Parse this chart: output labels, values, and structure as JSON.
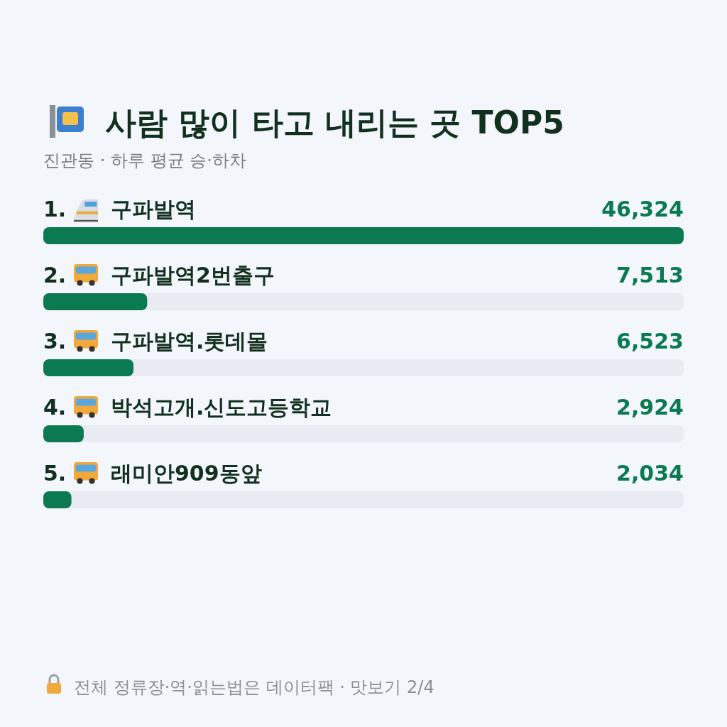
{
  "chart_data": {
    "type": "bar",
    "orientation": "horizontal",
    "title": "사람 많이 타고 내리는 곳 TOP5",
    "subtitle": "진관동 · 하루 평균 승·하차",
    "categories": [
      "1. 구파발역",
      "2. 구파발역2번출구",
      "3. 구파발역.롯데몰",
      "4. 박석고개.신도고등학교",
      "5. 래미안909동앞"
    ],
    "series": [
      {
        "color": "#0b7a50",
        "values": [
          46324,
          7513,
          6523,
          2924,
          2034
        ],
        "value_labels": [
          "46,324",
          "7,513",
          "6,523",
          "2,924",
          "2,034"
        ]
      }
    ],
    "annotations": [
      "전체 정류장·역·읽는법은 데이터팩 · 맛보기 2/4"
    ]
  }
}
